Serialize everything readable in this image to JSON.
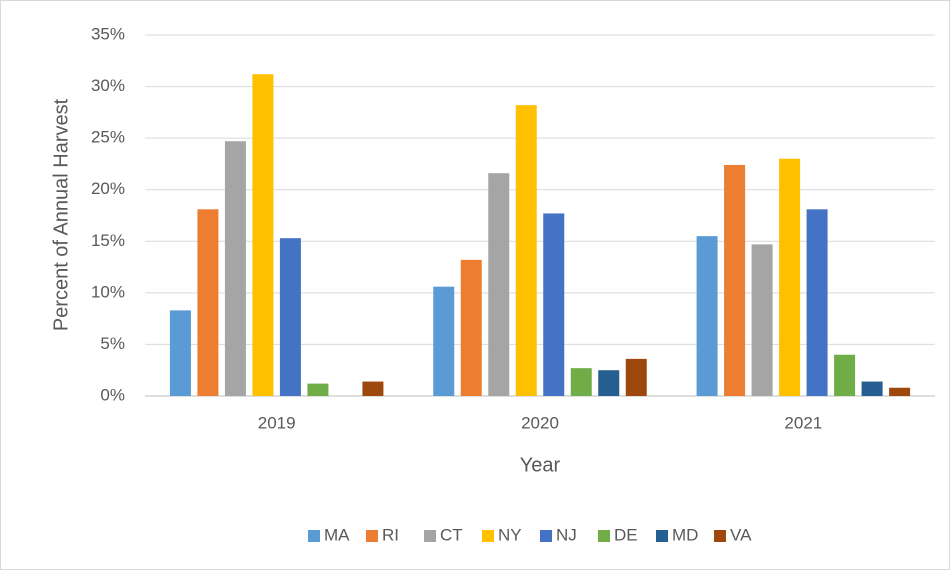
{
  "chart_data": {
    "type": "bar",
    "x_label": "Year",
    "y_label": "Percent of Annual Harvest",
    "categories": [
      "2019",
      "2020",
      "2021"
    ],
    "series": [
      {
        "name": "MA",
        "color": "#5b9bd5",
        "values": [
          8.3,
          10.6,
          15.5
        ]
      },
      {
        "name": "RI",
        "color": "#ed7d31",
        "values": [
          18.1,
          13.2,
          22.4
        ]
      },
      {
        "name": "CT",
        "color": "#a5a5a5",
        "values": [
          24.7,
          21.6,
          14.7
        ]
      },
      {
        "name": "NY",
        "color": "#ffc000",
        "values": [
          31.2,
          28.2,
          23.0
        ]
      },
      {
        "name": "NJ",
        "color": "#4472c4",
        "values": [
          15.3,
          17.7,
          18.1
        ]
      },
      {
        "name": "DE",
        "color": "#70ad47",
        "values": [
          1.2,
          2.7,
          4.0
        ]
      },
      {
        "name": "MD",
        "color": "#255e91",
        "values": [
          0,
          2.5,
          1.4
        ]
      },
      {
        "name": "VA",
        "color": "#9e480e",
        "values": [
          1.4,
          3.6,
          0.8
        ]
      }
    ],
    "ylim": [
      0,
      35
    ],
    "yticks": [
      {
        "value": 0,
        "label": "0%"
      },
      {
        "value": 5,
        "label": "5%"
      },
      {
        "value": 10,
        "label": "10%"
      },
      {
        "value": 15,
        "label": "15%"
      },
      {
        "value": 20,
        "label": "20%"
      },
      {
        "value": 25,
        "label": "25%"
      },
      {
        "value": 30,
        "label": "30%"
      },
      {
        "value": 35,
        "label": "35%"
      }
    ],
    "grid": true,
    "legend": "bottom"
  }
}
